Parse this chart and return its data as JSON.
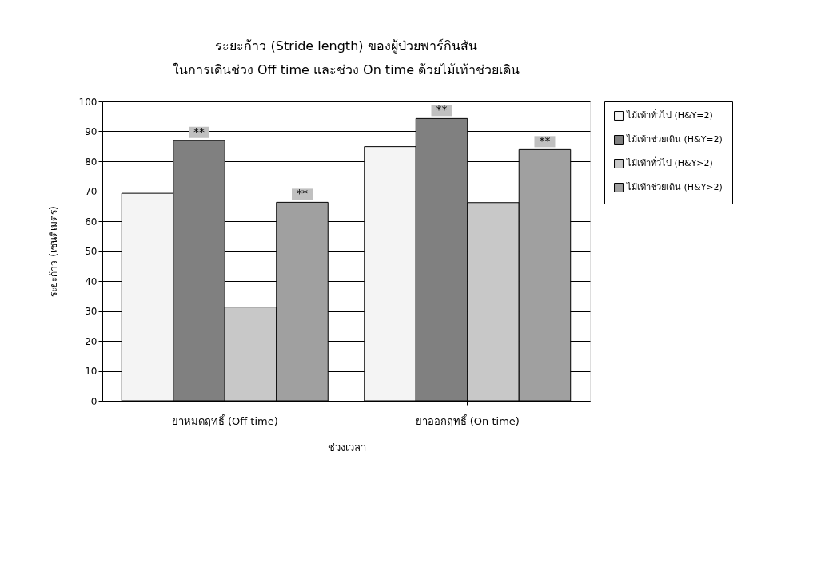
{
  "chart_data": {
    "type": "bar",
    "title": "ระยะก้าว (Stride length) ของผู้ป่วยพาร์กินสัน",
    "subtitle": "ในการเดินช่วง Off time และช่วง On time ด้วยไม้เท้าช่วยเดิน",
    "xlabel": "ช่วงเวลา",
    "ylabel": "ระยะก้าว (เซนติเมตร)",
    "categories": [
      "ยาหมดฤทธิ์ (Off time)",
      "ยาออกฤทธิ์ (On time)"
    ],
    "series": [
      {
        "name": "ไม้เท้าทั่วไป (H&Y=2)",
        "color": "#f4f4f4",
        "values": [
          69.3,
          84.9
        ]
      },
      {
        "name": "ไม้เท้าช่วยเดิน (H&Y=2)",
        "color": "#808080",
        "values": [
          87.0,
          94.3
        ]
      },
      {
        "name": "ไม้เท้าทั่วไป (H&Y>2)",
        "color": "#c8c8c8",
        "values": [
          31.3,
          66.2
        ]
      },
      {
        "name": "ไม้เท้าช่วยเดิน (H&Y>2)",
        "color": "#a0a0a0",
        "values": [
          66.3,
          83.9
        ]
      }
    ],
    "annotations": [
      "**",
      "**",
      "**",
      "**"
    ],
    "ylim": [
      0,
      100
    ],
    "yticks": [
      0,
      10,
      20,
      30,
      40,
      50,
      60,
      70,
      80,
      90,
      100
    ],
    "grid": "y",
    "legend": "right"
  }
}
